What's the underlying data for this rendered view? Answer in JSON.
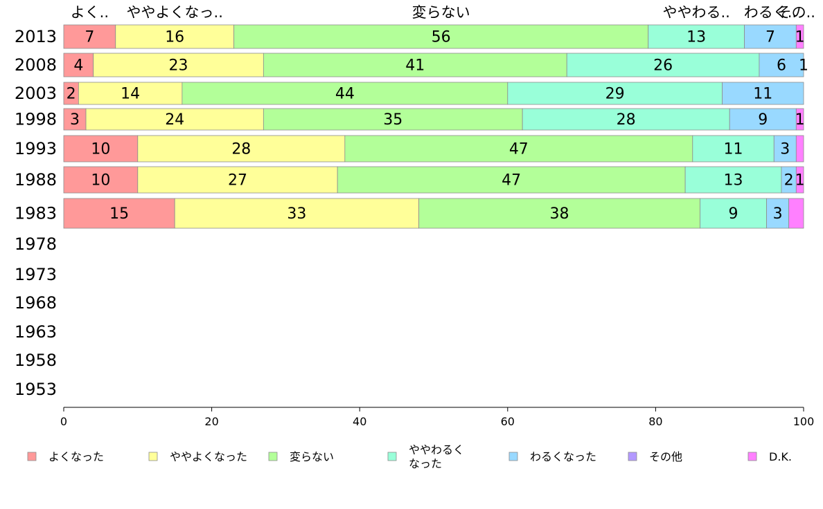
{
  "chart_data": {
    "type": "bar",
    "orientation": "horizontal",
    "stacked": true,
    "categories": [
      "2013",
      "2008",
      "2003",
      "1998",
      "1993",
      "1988",
      "1983",
      "1978",
      "1973",
      "1968",
      "1963",
      "1958",
      "1953"
    ],
    "series": [
      {
        "name": "よくなった",
        "color": "#ff9999",
        "values": [
          7,
          4,
          2,
          3,
          10,
          10,
          15,
          null,
          null,
          null,
          null,
          null,
          null
        ]
      },
      {
        "name": "ややよくなった",
        "color": "#ffff99",
        "values": [
          16,
          23,
          14,
          24,
          28,
          27,
          33,
          null,
          null,
          null,
          null,
          null,
          null
        ]
      },
      {
        "name": "変らない",
        "color": "#b3ff99",
        "values": [
          56,
          41,
          44,
          35,
          47,
          47,
          38,
          null,
          null,
          null,
          null,
          null,
          null
        ]
      },
      {
        "name": "ややわるくなった",
        "color": "#99ffd9",
        "values": [
          13,
          26,
          29,
          28,
          11,
          13,
          9,
          null,
          null,
          null,
          null,
          null,
          null
        ]
      },
      {
        "name": "わるくなった",
        "color": "#99d9ff",
        "values": [
          7,
          6,
          11,
          9,
          3,
          2,
          3,
          null,
          null,
          null,
          null,
          null,
          null
        ]
      },
      {
        "name": "その他",
        "color": "#b399ff",
        "values": [
          0,
          0,
          0,
          0,
          0,
          0,
          0,
          null,
          null,
          null,
          null,
          null,
          null
        ]
      },
      {
        "name": "D.K.",
        "color": "#ff80ff",
        "values": [
          1,
          1,
          0,
          1,
          0,
          1,
          0,
          null,
          null,
          null,
          null,
          null,
          null
        ]
      }
    ],
    "top_labels": [
      "よく..",
      "ややよくなっ..",
      "変らない",
      "ややわる..",
      "わるく..",
      "その.."
    ],
    "legend_labels": [
      "よくなった",
      "ややよくなった",
      "変らない",
      "ややわるく\nなった",
      "わるくなった",
      "その他",
      "D.K."
    ],
    "xlim": [
      0,
      100
    ],
    "xticks": [
      0,
      20,
      40,
      60,
      80,
      100
    ],
    "legend_position": "bottom",
    "grid": false
  }
}
